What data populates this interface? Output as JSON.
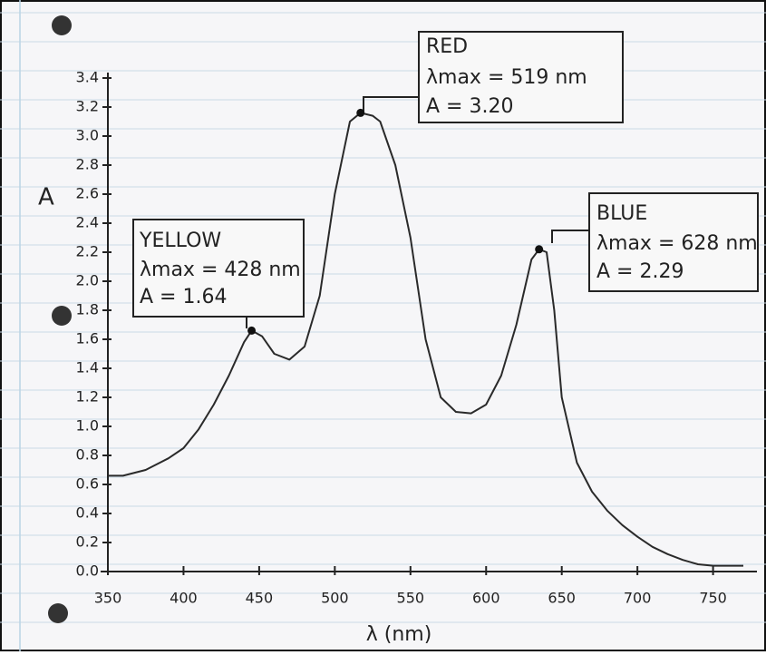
{
  "chart_data": {
    "type": "line",
    "x": [
      350,
      360,
      375,
      390,
      400,
      410,
      420,
      430,
      440,
      445,
      452,
      460,
      470,
      480,
      490,
      500,
      510,
      517,
      525,
      530,
      540,
      550,
      560,
      570,
      580,
      590,
      600,
      610,
      620,
      630,
      635,
      640,
      645,
      650,
      660,
      670,
      680,
      690,
      700,
      710,
      720,
      730,
      740,
      750,
      770
    ],
    "series": [
      {
        "color": "#2a2a2a",
        "values": [
          0.66,
          0.66,
          0.7,
          0.78,
          0.85,
          0.98,
          1.15,
          1.35,
          1.58,
          1.66,
          1.62,
          1.5,
          1.46,
          1.55,
          1.9,
          2.6,
          3.1,
          3.16,
          3.14,
          3.1,
          2.8,
          2.3,
          1.6,
          1.2,
          1.1,
          1.09,
          1.15,
          1.35,
          1.7,
          2.15,
          2.22,
          2.2,
          1.8,
          1.2,
          0.75,
          0.55,
          0.42,
          0.32,
          0.24,
          0.17,
          0.12,
          0.08,
          0.05,
          0.04,
          0.04
        ]
      }
    ],
    "xlim": [
      350,
      779
    ],
    "ylim": [
      0,
      3.4
    ],
    "xticks": [
      350,
      400,
      450,
      500,
      550,
      600,
      650,
      700,
      750
    ],
    "yticks": [
      {
        "value": 0,
        "label": "0.0"
      },
      0.2,
      0.4,
      0.6,
      0.8,
      {
        "value": 1,
        "label": "1.0"
      },
      1.2,
      1.4,
      1.6,
      1.8,
      {
        "value": 2,
        "label": "2.0"
      },
      2.2,
      2.4,
      2.6,
      2.8,
      {
        "value": 3,
        "label": "3.0"
      },
      3.2,
      3.4
    ],
    "ylabel": "A",
    "xlabel": "λ (nm)",
    "annotations": [
      {
        "lines": [
          "YELLOW",
          "λmax = 428 nm",
          "A = 1.64"
        ]
      },
      {
        "lines": [
          "RED",
          "λmax = 519 nm",
          "A = 3.20"
        ]
      },
      {
        "lines": [
          "BLUE",
          "λmax = 628 nm",
          "A = 2.29"
        ]
      }
    ]
  }
}
